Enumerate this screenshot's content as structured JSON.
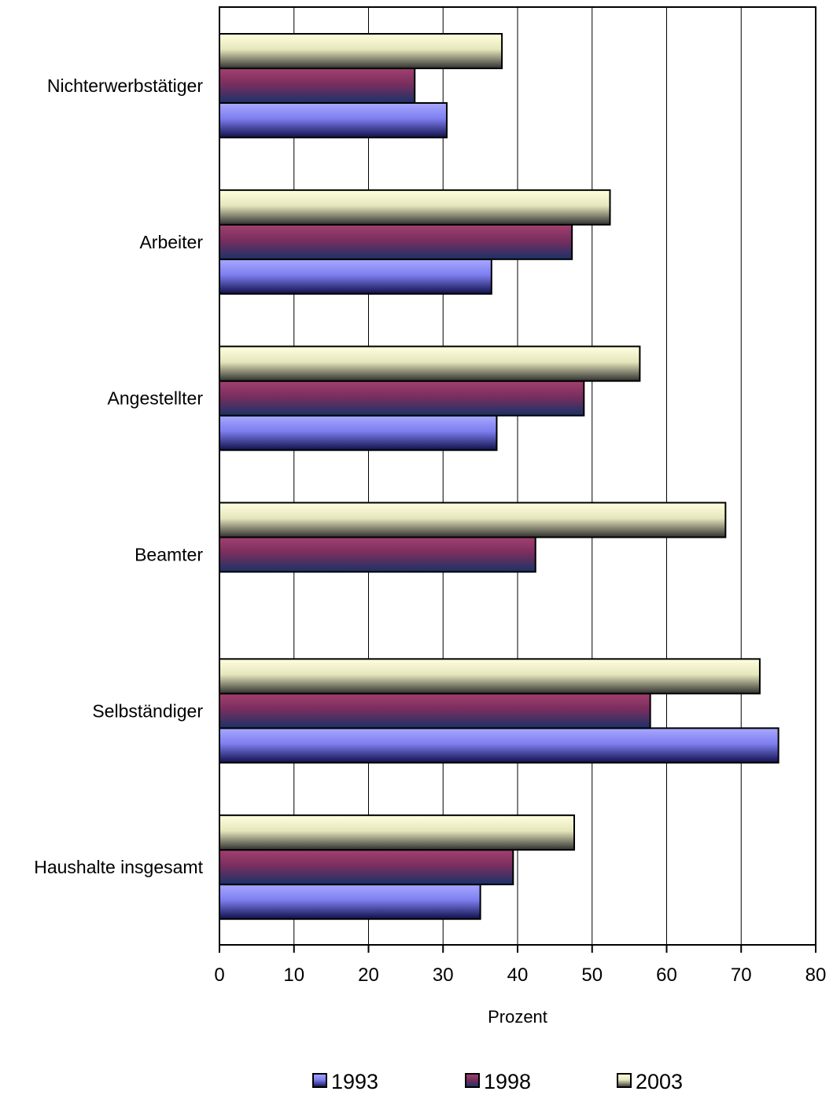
{
  "chart_data": {
    "type": "bar",
    "orientation": "horizontal",
    "categories": [
      "Nichterwerbstätiger",
      "Arbeiter",
      "Angestellter",
      "Beamter",
      "Selbständiger",
      "Haushalte insgesamt"
    ],
    "series": [
      {
        "name": "1993",
        "values": [
          30.5,
          36.5,
          37.2,
          null,
          75.0,
          35.0
        ],
        "color": "#8080ff"
      },
      {
        "name": "1998",
        "values": [
          26.2,
          47.3,
          48.9,
          42.4,
          57.8,
          39.4
        ],
        "color": "#993366"
      },
      {
        "name": "2003",
        "values": [
          37.9,
          52.4,
          56.4,
          67.9,
          72.5,
          47.6
        ],
        "color": "#ffffcc"
      }
    ],
    "xlabel": "Prozent",
    "xlim": [
      0,
      80
    ],
    "xticks": [
      "0",
      "10",
      "20",
      "30",
      "40",
      "50",
      "60",
      "70",
      "80"
    ],
    "grid": true,
    "legend_position": "bottom"
  }
}
